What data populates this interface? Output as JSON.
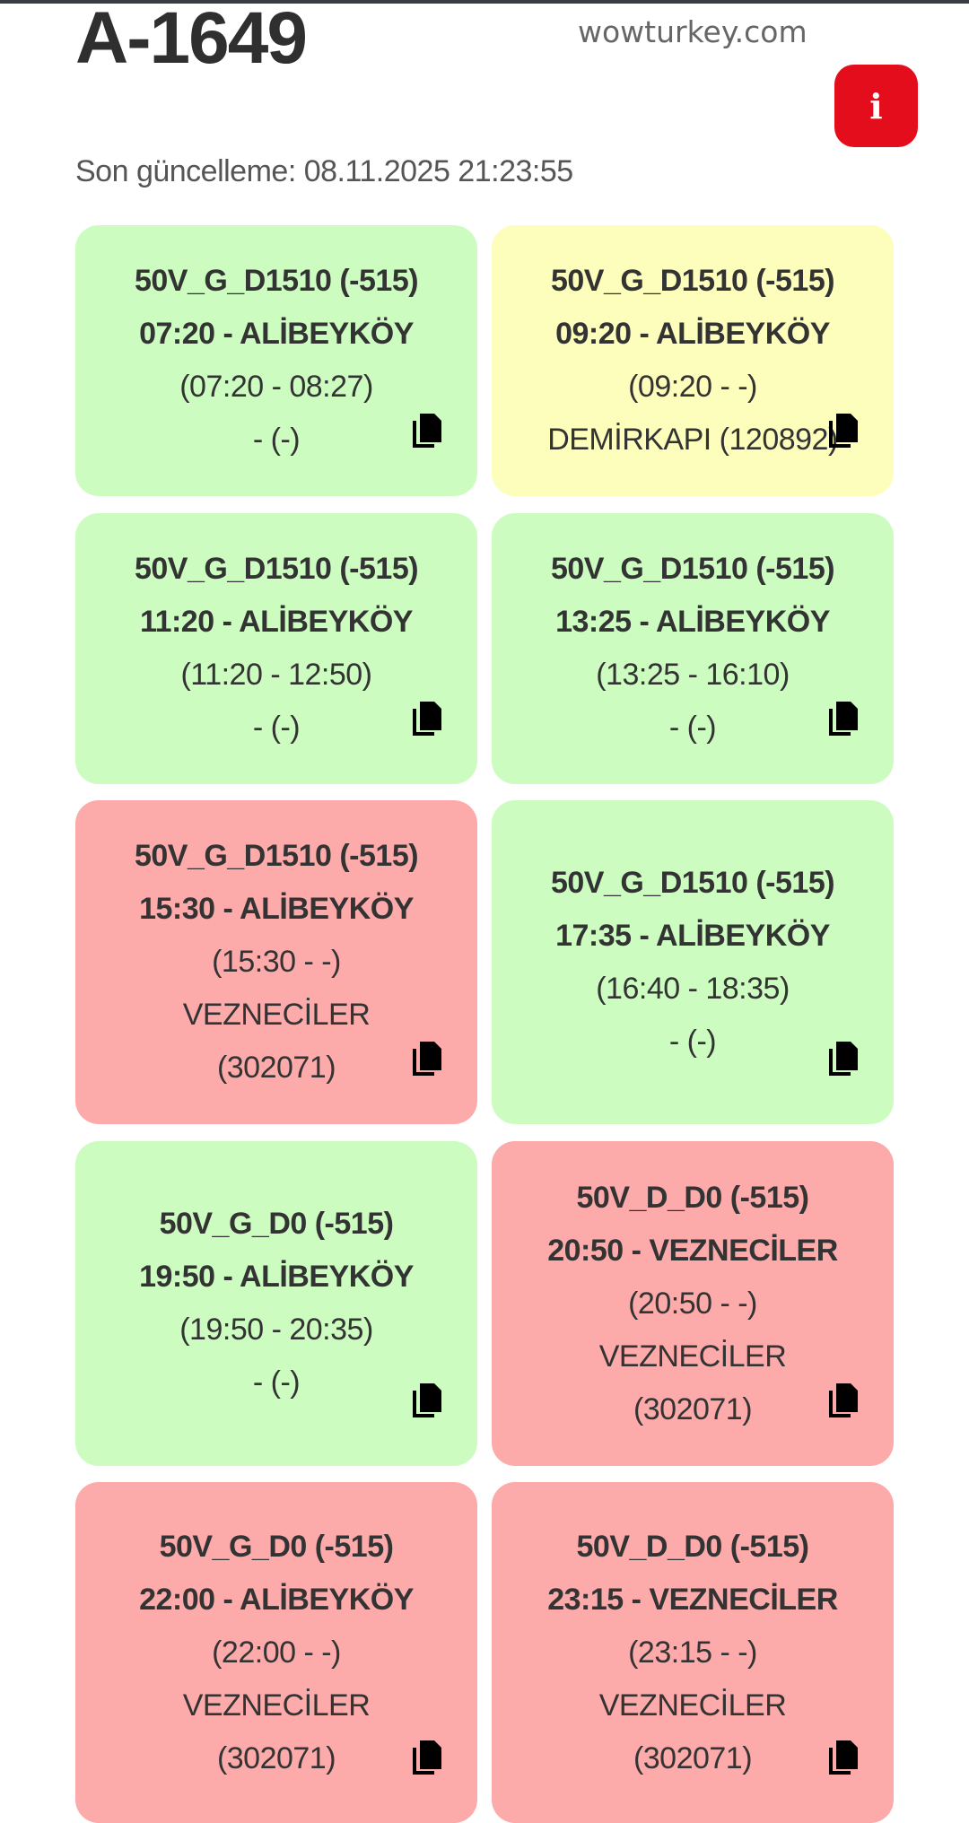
{
  "header": {
    "title": "A-1649",
    "info_label": "i",
    "last_update": "Son güncelleme: 08.11.2025 21:23:55"
  },
  "colors": {
    "green": "#ccfcc0",
    "yellow": "#fdfdbc",
    "red": "#fdaaaa",
    "info_button": "#e30d1b"
  },
  "trips": [
    {
      "status": "green",
      "route": "50V_G_D1510 (-515)",
      "departure": "07:20 - ALİBEYKÖY",
      "times": "(07:20 - 08:27)",
      "stop": "- (-)",
      "stop2": ""
    },
    {
      "status": "yellow",
      "route": "50V_G_D1510 (-515)",
      "departure": "09:20 - ALİBEYKÖY",
      "times": "(09:20 - -)",
      "stop": "DEMİRKAPI (120892)",
      "stop2": ""
    },
    {
      "status": "green",
      "route": "50V_G_D1510 (-515)",
      "departure": "11:20 - ALİBEYKÖY",
      "times": "(11:20 - 12:50)",
      "stop": "- (-)",
      "stop2": ""
    },
    {
      "status": "green",
      "route": "50V_G_D1510 (-515)",
      "departure": "13:25 - ALİBEYKÖY",
      "times": "(13:25 - 16:10)",
      "stop": "- (-)",
      "stop2": ""
    },
    {
      "status": "red",
      "route": "50V_G_D1510 (-515)",
      "departure": "15:30 - ALİBEYKÖY",
      "times": "(15:30 - -)",
      "stop": "VEZNECİLER",
      "stop2": "(302071)"
    },
    {
      "status": "green",
      "route": "50V_G_D1510 (-515)",
      "departure": "17:35 - ALİBEYKÖY",
      "times": "(16:40 - 18:35)",
      "stop": "- (-)",
      "stop2": ""
    },
    {
      "status": "green",
      "route": "50V_G_D0 (-515)",
      "departure": "19:50 - ALİBEYKÖY",
      "times": "(19:50 - 20:35)",
      "stop": "- (-)",
      "stop2": ""
    },
    {
      "status": "red",
      "route": "50V_D_D0 (-515)",
      "departure": "20:50 - VEZNECİLER",
      "times": "(20:50 - -)",
      "stop": "VEZNECİLER",
      "stop2": "(302071)"
    },
    {
      "status": "red",
      "route": "50V_G_D0 (-515)",
      "departure": "22:00 - ALİBEYKÖY",
      "times": "(22:00 - -)",
      "stop": "VEZNECİLER",
      "stop2": "(302071)"
    },
    {
      "status": "red",
      "route": "50V_D_D0 (-515)",
      "departure": "23:15 - VEZNECİLER",
      "times": "(23:15 - -)",
      "stop": "VEZNECİLER",
      "stop2": "(302071)"
    }
  ],
  "watermark": "wowturkey.com"
}
